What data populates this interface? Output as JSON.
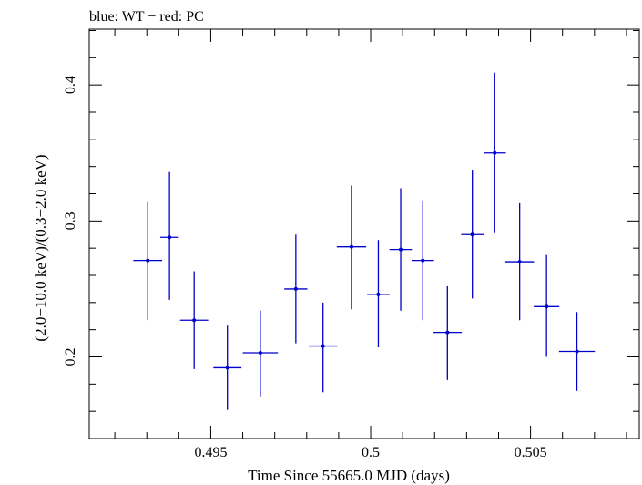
{
  "chart_data": {
    "type": "scatter",
    "title": "blue: WT − red: PC",
    "xlabel": "Time Since 55665.0 MJD (days)",
    "ylabel": "(2.0−10.0 keV)/(0.3−2.0 keV)",
    "xlim": [
      0.4912,
      0.5084
    ],
    "ylim": [
      0.14,
      0.441
    ],
    "x_ticks": [
      {
        "value": 0.495,
        "label": "0.495"
      },
      {
        "value": 0.5,
        "label": "0.5"
      },
      {
        "value": 0.505,
        "label": "0.505"
      }
    ],
    "y_ticks": [
      {
        "value": 0.2,
        "label": "0.2"
      },
      {
        "value": 0.3,
        "label": "0.3"
      },
      {
        "value": 0.4,
        "label": "0.4"
      }
    ],
    "series": [
      {
        "color": "#0000cc",
        "points": [
          {
            "x": 0.49303,
            "xerr": 0.00045,
            "y": 0.271,
            "ylo": 0.227,
            "yhi": 0.314
          },
          {
            "x": 0.49371,
            "xerr": 0.00029,
            "y": 0.288,
            "ylo": 0.242,
            "yhi": 0.336
          },
          {
            "x": 0.49448,
            "xerr": 0.00044,
            "y": 0.227,
            "ylo": 0.191,
            "yhi": 0.263
          },
          {
            "x": 0.49552,
            "xerr": 0.00044,
            "y": 0.192,
            "ylo": 0.161,
            "yhi": 0.223
          },
          {
            "x": 0.49655,
            "xerr": 0.00055,
            "y": 0.203,
            "ylo": 0.171,
            "yhi": 0.234
          },
          {
            "x": 0.49766,
            "xerr": 0.00036,
            "y": 0.25,
            "ylo": 0.21,
            "yhi": 0.29
          },
          {
            "x": 0.49851,
            "xerr": 0.00045,
            "y": 0.208,
            "ylo": 0.174,
            "yhi": 0.24
          },
          {
            "x": 0.4994,
            "xerr": 0.00046,
            "y": 0.281,
            "ylo": 0.235,
            "yhi": 0.326
          },
          {
            "x": 0.50024,
            "xerr": 0.00035,
            "y": 0.246,
            "ylo": 0.207,
            "yhi": 0.286
          },
          {
            "x": 0.50094,
            "xerr": 0.00035,
            "y": 0.279,
            "ylo": 0.234,
            "yhi": 0.324
          },
          {
            "x": 0.50163,
            "xerr": 0.00035,
            "y": 0.271,
            "ylo": 0.227,
            "yhi": 0.315
          },
          {
            "x": 0.5024,
            "xerr": 0.00045,
            "y": 0.218,
            "ylo": 0.183,
            "yhi": 0.252
          },
          {
            "x": 0.50318,
            "xerr": 0.00035,
            "y": 0.29,
            "ylo": 0.243,
            "yhi": 0.337
          },
          {
            "x": 0.50388,
            "xerr": 0.00035,
            "y": 0.35,
            "ylo": 0.291,
            "yhi": 0.409
          },
          {
            "x": 0.50466,
            "xerr": 0.00045,
            "y": 0.27,
            "ylo": 0.227,
            "yhi": 0.313
          },
          {
            "x": 0.5055,
            "xerr": 0.0004,
            "y": 0.237,
            "ylo": 0.2,
            "yhi": 0.275
          },
          {
            "x": 0.50645,
            "xerr": 0.00056,
            "y": 0.204,
            "ylo": 0.175,
            "yhi": 0.233
          }
        ]
      }
    ]
  }
}
